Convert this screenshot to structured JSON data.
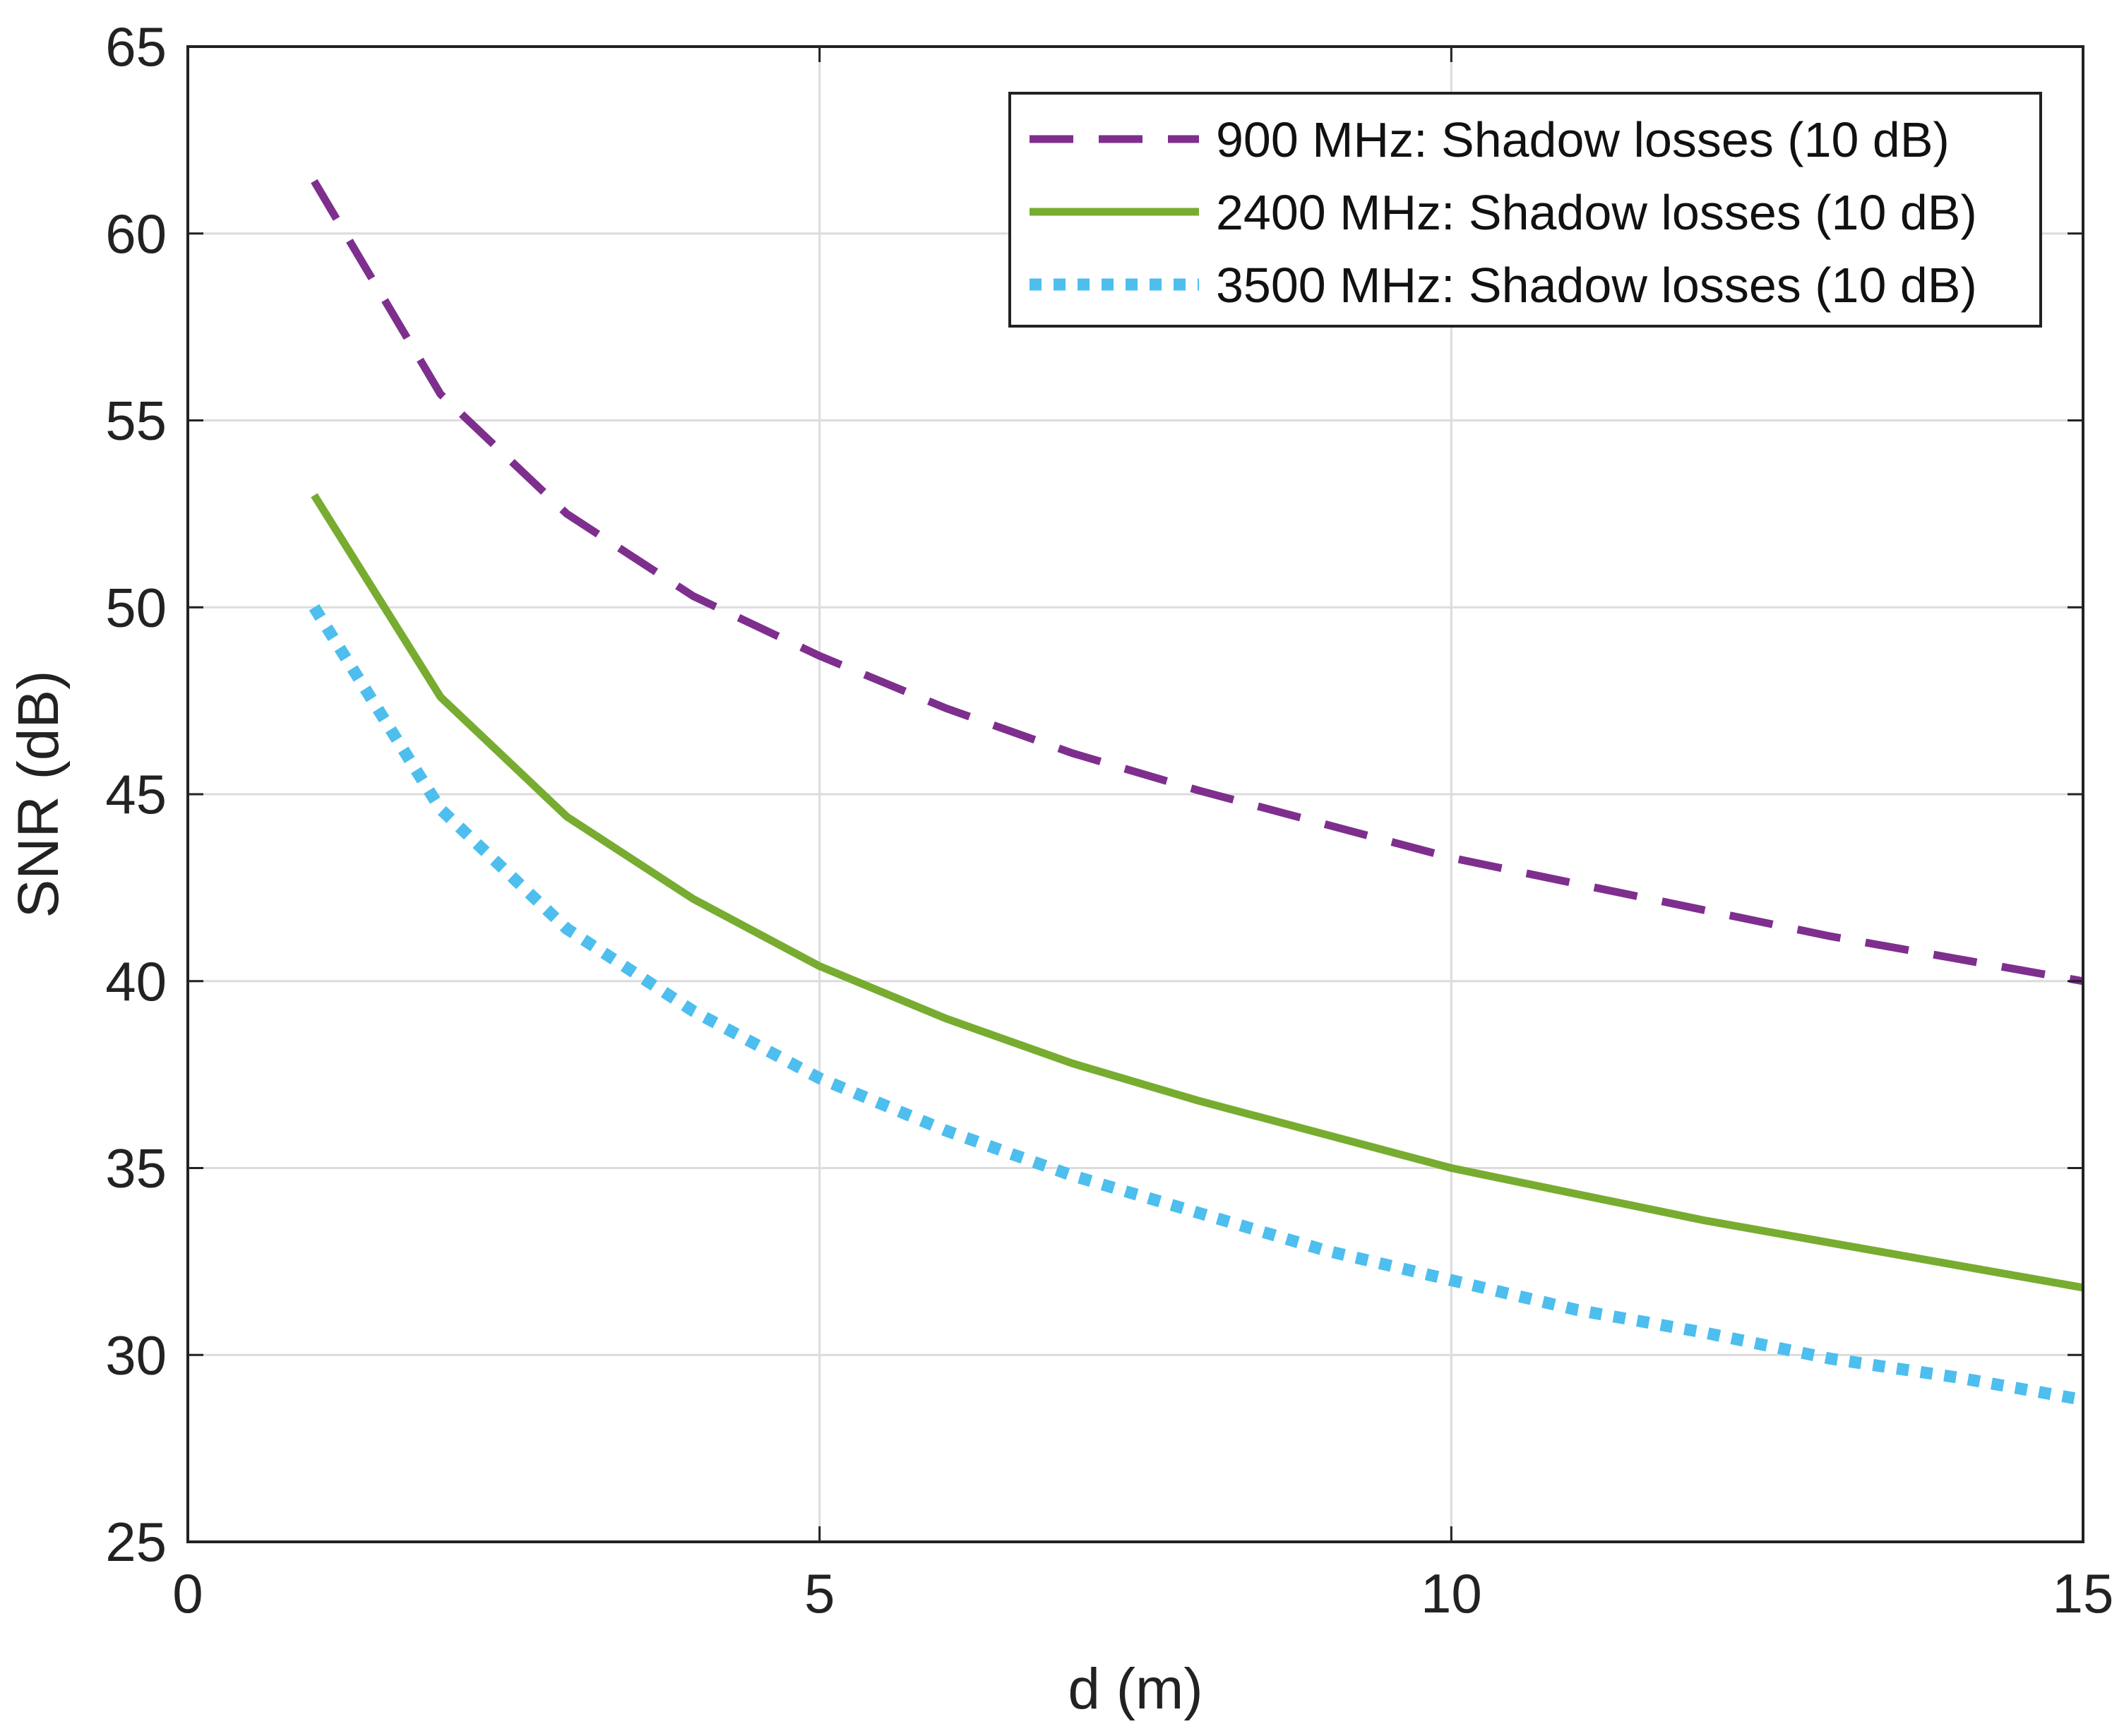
{
  "chart_data": {
    "type": "line",
    "title": "",
    "xlabel": "d (m)",
    "ylabel": "SNR (dB)",
    "xlim": [
      0,
      15
    ],
    "ylim": [
      25,
      65
    ],
    "xticks": [
      0,
      5,
      10,
      15
    ],
    "yticks": [
      25,
      30,
      35,
      40,
      45,
      50,
      55,
      60,
      65
    ],
    "grid": true,
    "legend_position": "top-right",
    "x": [
      1,
      2,
      3,
      4,
      5,
      6,
      7,
      8,
      9,
      10,
      11,
      12,
      13,
      14,
      15
    ],
    "series": [
      {
        "name": "900 MHz: Shadow losses (10 dB)",
        "color": "#7E2F8E",
        "style": "dashed",
        "values": [
          61.4,
          55.7,
          52.5,
          50.3,
          48.7,
          47.3,
          46.1,
          45.1,
          44.2,
          43.3,
          42.6,
          41.9,
          41.2,
          40.6,
          40.0
        ]
      },
      {
        "name": "2400 MHz: Shadow losses (10 dB)",
        "color": "#77AC30",
        "style": "solid",
        "values": [
          53.0,
          47.6,
          44.4,
          42.2,
          40.4,
          39.0,
          37.8,
          36.8,
          35.9,
          35.0,
          34.3,
          33.6,
          33.0,
          32.4,
          31.8
        ]
      },
      {
        "name": "3500 MHz: Shadow losses (10 dB)",
        "color": "#4DBEEE",
        "style": "dotted",
        "values": [
          50.0,
          44.6,
          41.4,
          39.2,
          37.4,
          36.0,
          34.8,
          33.8,
          32.8,
          32.0,
          31.2,
          30.6,
          29.9,
          29.4,
          28.8
        ]
      }
    ]
  }
}
